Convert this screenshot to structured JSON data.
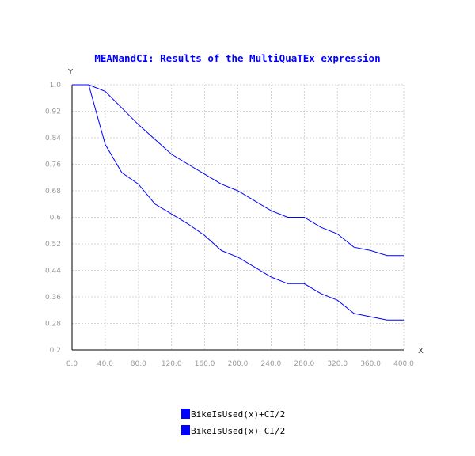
{
  "chart_data": {
    "type": "line",
    "title": "MEANandCI: Results of the MultiQuaTEx expression",
    "xlabel": "X",
    "ylabel": "Y",
    "xlim": [
      0,
      400
    ],
    "ylim": [
      0.2,
      1.0
    ],
    "x_ticks": [
      "0.0",
      "40.0",
      "80.0",
      "120.0",
      "160.0",
      "200.0",
      "240.0",
      "280.0",
      "320.0",
      "360.0",
      "400.0"
    ],
    "y_ticks": [
      "1.0",
      "0.92",
      "0.84",
      "0.76",
      "0.68",
      "0.6",
      "0.52",
      "0.44",
      "0.36",
      "0.28",
      "0.2"
    ],
    "grid": true,
    "legend_position": "bottom",
    "series": [
      {
        "name": "BikeIsUsed(x)+CI/2",
        "color": "#0000ff",
        "x": [
          0,
          20,
          40,
          60,
          80,
          100,
          120,
          140,
          160,
          180,
          200,
          220,
          240,
          260,
          280,
          300,
          320,
          340,
          360,
          380,
          400
        ],
        "y": [
          1.0,
          1.0,
          0.98,
          0.93,
          0.88,
          0.835,
          0.79,
          0.76,
          0.73,
          0.7,
          0.68,
          0.65,
          0.62,
          0.6,
          0.6,
          0.57,
          0.55,
          0.51,
          0.5,
          0.485,
          0.485
        ]
      },
      {
        "name": "BikeIsUsed(x)−CI/2",
        "color": "#0000ff",
        "x": [
          0,
          20,
          40,
          60,
          80,
          100,
          120,
          140,
          160,
          180,
          200,
          220,
          240,
          260,
          280,
          300,
          320,
          340,
          360,
          380,
          400
        ],
        "y": [
          1.0,
          1.0,
          0.82,
          0.735,
          0.7,
          0.64,
          0.61,
          0.58,
          0.545,
          0.5,
          0.48,
          0.45,
          0.42,
          0.4,
          0.4,
          0.37,
          0.35,
          0.31,
          0.3,
          0.29,
          0.29
        ]
      }
    ]
  },
  "colors": {
    "title": "#0000ff",
    "series": "#0000ff",
    "grid": "#c8c8c8",
    "axis": "#000000",
    "tick_label": "#9a9a9a"
  }
}
